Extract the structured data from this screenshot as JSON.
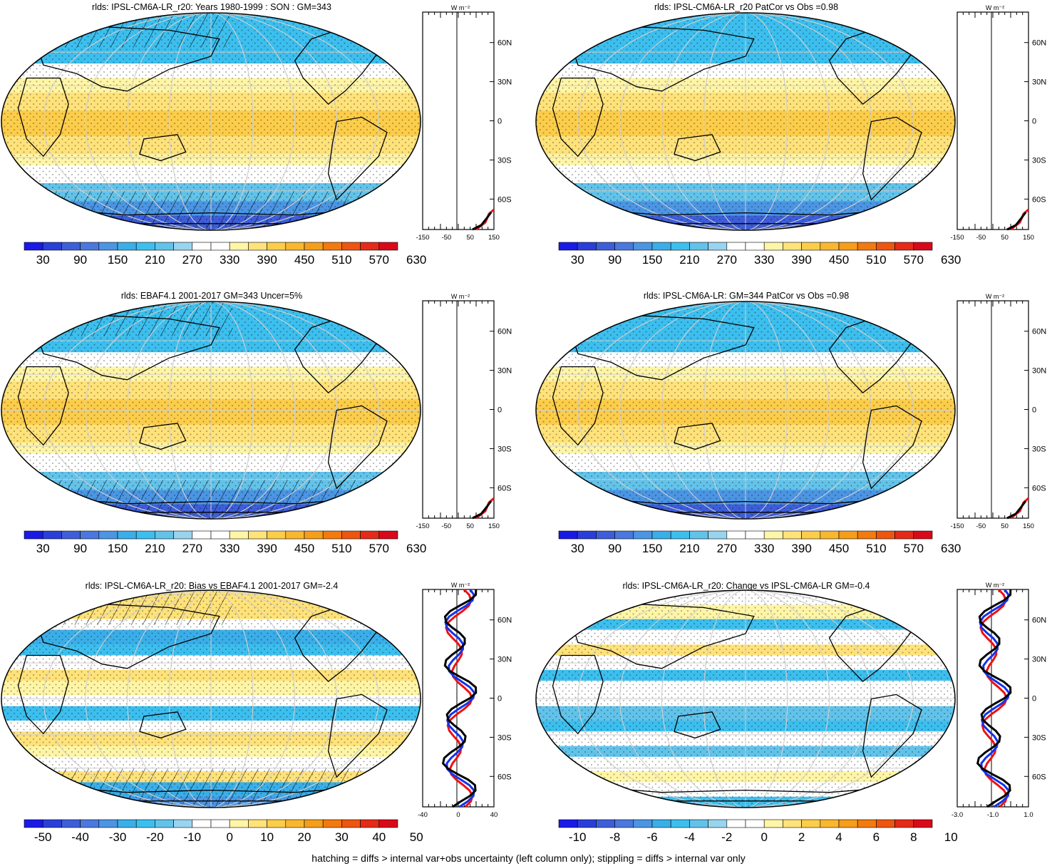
{
  "variable": "rlds",
  "footnote": "hatching = diffs > internal var+obs uncertainty (left column only); stippling = diffs > internal var only",
  "colors": {
    "absolute_palette": [
      "#1a1ae6",
      "#2a3fd9",
      "#3e5ed9",
      "#4a78de",
      "#4b95e3",
      "#3aaee8",
      "#3cbfee",
      "#62c3ea",
      "#99d4ef",
      "#ffffff",
      "#ffffff",
      "#fff5a6",
      "#ffe27a",
      "#fccd4a",
      "#f9b72f",
      "#f69d1a",
      "#f27a0e",
      "#ee5510",
      "#e52a17",
      "#d9091a"
    ],
    "diff_palette": [
      "#1a1ae6",
      "#2a3fd9",
      "#3e5ed9",
      "#4a78de",
      "#4b95e3",
      "#3aaee8",
      "#3cbfee",
      "#62c3ea",
      "#99d4ef",
      "#ffffff",
      "#ffffff",
      "#fff5a6",
      "#ffe27a",
      "#fccd4a",
      "#f9b72f",
      "#f69d1a",
      "#f27a0e",
      "#ee5510",
      "#e52a17",
      "#d9091a"
    ]
  },
  "zonal_axis": {
    "unit": "W m⁻²",
    "lat_labels": [
      "60N",
      "30N",
      "0",
      "30S",
      "60S"
    ]
  },
  "panels": [
    {
      "id": "model-climatology",
      "title": "rlds: IPSL-CM6A-LR_r20: Years 1980-1999 : SON : GM=343",
      "colorbar_labels": [
        "30",
        "90",
        "150",
        "210",
        "270",
        "330",
        "390",
        "450",
        "510",
        "570",
        "630"
      ],
      "zonal_x_labels": [
        "-150",
        "-50",
        "50",
        "150"
      ],
      "map_style": "absolute",
      "hatched": true
    },
    {
      "id": "model-pattern",
      "title": "rlds: IPSL-CM6A-LR_r20 PatCor vs Obs =0.98",
      "colorbar_labels": [
        "30",
        "90",
        "150",
        "210",
        "270",
        "330",
        "390",
        "450",
        "510",
        "570",
        "630"
      ],
      "zonal_x_labels": [
        "-150",
        "-50",
        "50",
        "150"
      ],
      "map_style": "absolute",
      "hatched": false
    },
    {
      "id": "obs-climatology",
      "title": "rlds: EBAF4.1 2001-2017 GM=343 Uncer=5%",
      "colorbar_labels": [
        "30",
        "90",
        "150",
        "210",
        "270",
        "330",
        "390",
        "450",
        "510",
        "570",
        "630"
      ],
      "zonal_x_labels": [
        "-150",
        "-50",
        "50",
        "150"
      ],
      "map_style": "absolute",
      "hatched": true
    },
    {
      "id": "ensemble-climatology",
      "title": "rlds: IPSL-CM6A-LR: GM=344 PatCor vs Obs =0.98",
      "colorbar_labels": [
        "30",
        "90",
        "150",
        "210",
        "270",
        "330",
        "390",
        "450",
        "510",
        "570",
        "630"
      ],
      "zonal_x_labels": [
        "-150",
        "-50",
        "50",
        "150"
      ],
      "map_style": "absolute",
      "hatched": false
    },
    {
      "id": "bias",
      "title": "rlds: IPSL-CM6A-LR_r20: Bias vs EBAF4.1 2001-2017  GM=-2.4",
      "colorbar_labels": [
        "-50",
        "-40",
        "-30",
        "-20",
        "-10",
        "0",
        "10",
        "20",
        "30",
        "40",
        "50"
      ],
      "zonal_x_labels": [
        "-40",
        "0",
        "40"
      ],
      "map_style": "bias",
      "hatched": true
    },
    {
      "id": "change",
      "title": "rlds: IPSL-CM6A-LR_r20: Change vs IPSL-CM6A-LR GM=-0.4",
      "colorbar_labels": [
        "-10",
        "-8",
        "-6",
        "-4",
        "-2",
        "0",
        "2",
        "4",
        "6",
        "8",
        "10"
      ],
      "zonal_x_labels": [
        "-3.0",
        "-1.0",
        "1.0"
      ],
      "map_style": "change",
      "hatched": false
    }
  ]
}
